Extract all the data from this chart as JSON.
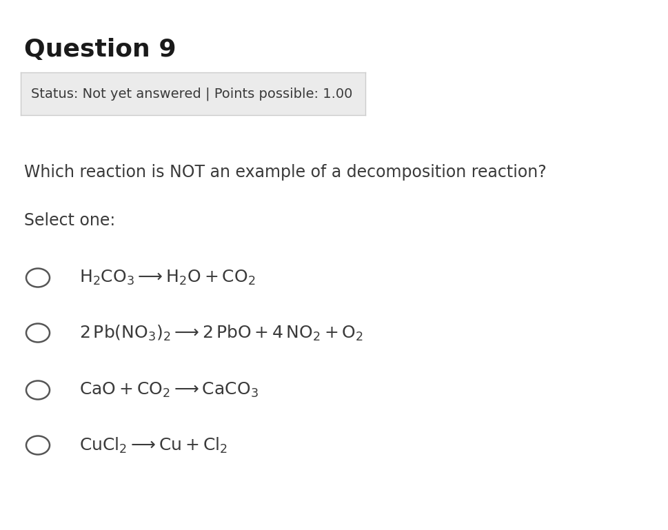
{
  "title": "Question 9",
  "status_box_text": "Status: Not yet answered | Points possible: 1.00",
  "question_text": "Which reaction is NOT an example of a decomposition reaction?",
  "select_text": "Select one:",
  "options_mathtext": [
    "$\\mathrm{H_2CO_3 \\longrightarrow H_2O + CO_2}$",
    "$\\mathrm{2\\,Pb(NO_3)_2 \\longrightarrow 2\\,PbO + 4\\,NO_2 + O_2}$",
    "$\\mathrm{CaO + CO_2 \\longrightarrow CaCO_3}$",
    "$\\mathrm{CuCl_2 \\longrightarrow Cu + Cl_2}$"
  ],
  "bg_color": "#ffffff",
  "title_color": "#1a1a1a",
  "text_color": "#3a3a3a",
  "status_bg": "#ebebeb",
  "status_border": "#cccccc",
  "circle_color": "#555555",
  "figwidth": 9.7,
  "figheight": 7.69
}
